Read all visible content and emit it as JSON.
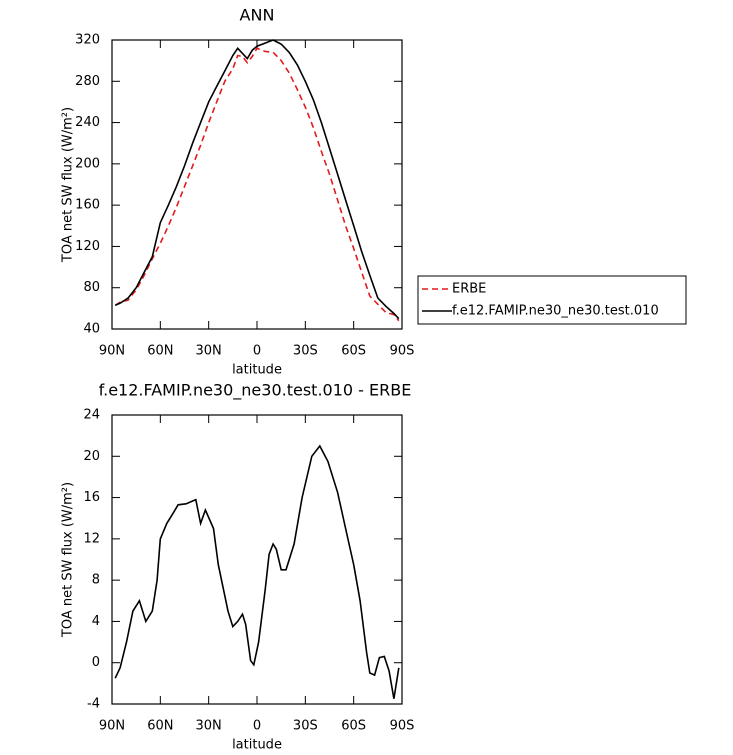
{
  "chart_data": [
    {
      "type": "line",
      "title": "ANN",
      "x_label": "latitude",
      "y_label": "TOA net SW flux (W/m²)",
      "x": [
        88,
        85,
        80,
        75,
        70,
        65,
        60,
        55,
        50,
        45,
        40,
        35,
        30,
        25,
        20,
        15,
        12,
        9,
        6,
        3,
        0,
        -5,
        -10,
        -15,
        -20,
        -25,
        -30,
        -35,
        -40,
        -45,
        -50,
        -55,
        -60,
        -65,
        -70,
        -75,
        -80,
        -85,
        -88
      ],
      "series": [
        {
          "name": "ERBE",
          "color": "#e41a1c",
          "linestyle": "dashed",
          "values": [
            63,
            66,
            68,
            78,
            92,
            108,
            123,
            140,
            158,
            178,
            198,
            218,
            240,
            260,
            280,
            292,
            305,
            304,
            298,
            304,
            312,
            309,
            308,
            300,
            288,
            272,
            255,
            235,
            212,
            190,
            165,
            140,
            118,
            95,
            72,
            64,
            56,
            54,
            48
          ]
        },
        {
          "name": "f.e12.FAMIP.ne30_ne30.test.010",
          "color": "#000000",
          "linestyle": "solid",
          "values": [
            63,
            65,
            70,
            80,
            95,
            110,
            143,
            160,
            178,
            198,
            220,
            240,
            260,
            275,
            290,
            305,
            312,
            307,
            302,
            310,
            314,
            317,
            320,
            316,
            308,
            296,
            280,
            262,
            240,
            215,
            190,
            165,
            140,
            115,
            92,
            70,
            62,
            55,
            50
          ]
        }
      ],
      "xlim": [
        90,
        -90
      ],
      "xticks": [
        {
          "value": 90,
          "label": "90N"
        },
        {
          "value": 60,
          "label": "60N"
        },
        {
          "value": 30,
          "label": "30N"
        },
        0,
        {
          "value": -30,
          "label": "30S"
        },
        {
          "value": -60,
          "label": "60S"
        },
        {
          "value": -90,
          "label": "90S"
        }
      ],
      "ylim": [
        40,
        320
      ],
      "yticks": [
        40,
        80,
        120,
        160,
        200,
        240,
        280,
        320
      ],
      "legend": "right"
    },
    {
      "type": "line",
      "title": "f.e12.FAMIP.ne30_ne30.test.010 - ERBE",
      "x_label": "latitude",
      "y_label": "TOA net SW flux (W/m²)",
      "x": [
        88,
        85,
        81,
        77,
        73,
        69,
        65,
        62,
        60,
        56,
        52,
        49,
        44,
        38,
        35,
        32,
        27,
        24,
        18,
        15,
        12,
        9,
        7,
        4,
        2,
        -1,
        -5,
        -7.5,
        -10,
        -12,
        -15,
        -18,
        -23,
        -28,
        -34,
        -39,
        -44,
        -50,
        -55,
        -60,
        -64,
        -68,
        -70,
        -73,
        -76,
        -79,
        -82,
        -85,
        -88
      ],
      "series": [
        {
          "color": "#000000",
          "linestyle": "solid",
          "values": [
            -1.5,
            -0.5,
            2,
            5,
            6,
            4,
            5,
            8,
            12,
            13.5,
            14.5,
            15.3,
            15.4,
            15.8,
            13.5,
            14.8,
            13,
            9.5,
            5,
            3.5,
            4,
            4.7,
            3.7,
            0.2,
            -0.2,
            2,
            7,
            10.5,
            11.5,
            11,
            9,
            9,
            11.5,
            16,
            20,
            21,
            19.5,
            16.5,
            13,
            9.5,
            6,
            1,
            -1,
            -1.2,
            0.5,
            0.6,
            -0.8,
            -3.5,
            -0.5
          ]
        }
      ],
      "xlim": [
        90,
        -90
      ],
      "xticks": [
        {
          "value": 90,
          "label": "90N"
        },
        {
          "value": 60,
          "label": "60N"
        },
        {
          "value": 30,
          "label": "30N"
        },
        0,
        {
          "value": -30,
          "label": "30S"
        },
        {
          "value": -60,
          "label": "60S"
        },
        {
          "value": -90,
          "label": "90S"
        }
      ],
      "ylim": [
        -4,
        24
      ],
      "yticks": [
        -4,
        0,
        4,
        8,
        12,
        16,
        20,
        24
      ]
    }
  ]
}
